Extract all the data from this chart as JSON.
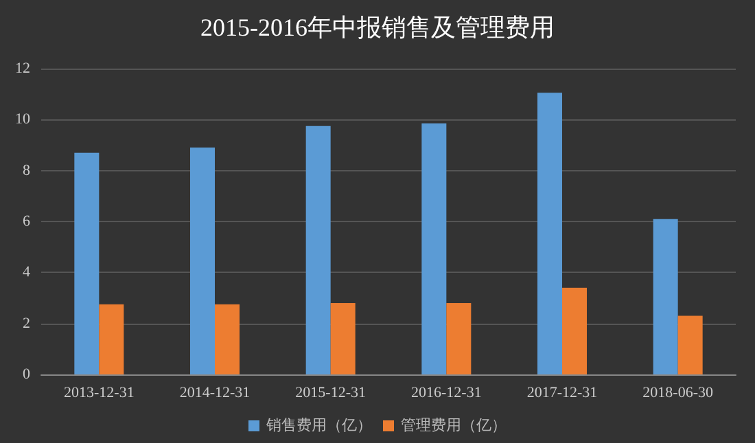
{
  "chart_data": {
    "type": "bar",
    "title": "2015-2016年中报销售及管理费用",
    "categories": [
      "2013-12-31",
      "2014-12-31",
      "2015-12-31",
      "2016-12-31",
      "2017-12-31",
      "2018-06-30"
    ],
    "series": [
      {
        "name": "销售费用（亿）",
        "color": "#5b9bd5",
        "values": [
          8.7,
          8.9,
          9.75,
          9.85,
          11.05,
          6.1
        ]
      },
      {
        "name": "管理费用（亿）",
        "color": "#ed7d31",
        "values": [
          2.75,
          2.75,
          2.8,
          2.8,
          3.4,
          2.3
        ]
      }
    ],
    "ylim": [
      0,
      12
    ],
    "yticks": [
      0,
      2,
      4,
      6,
      8,
      10,
      12
    ],
    "grid": "y",
    "legend": "bottom"
  }
}
